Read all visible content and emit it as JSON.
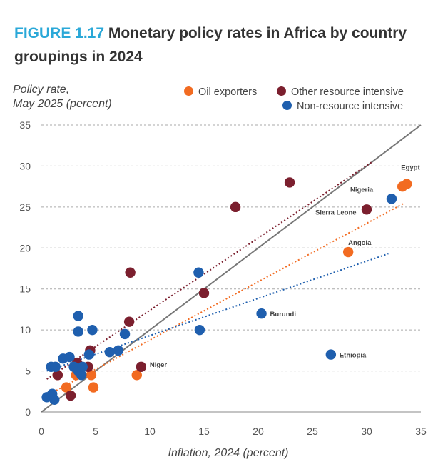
{
  "figure": {
    "number": "FIGURE 1.17",
    "title": "Monetary policy rates in Africa by country groupings in 2024"
  },
  "colors": {
    "oil": "#f26b21",
    "other_resource": "#7b1f2e",
    "non_resource": "#1f5fae",
    "diagonal": "#777777",
    "grid": "#aaaaaa"
  },
  "chart_data": {
    "type": "scatter",
    "title": "Monetary policy rates in Africa by country groupings in 2024",
    "xlabel": "Inflation, 2024 (percent)",
    "ylabel_line1": "Policy rate,",
    "ylabel_line2": "May 2025 (percent)",
    "xlim": [
      0,
      35
    ],
    "ylim": [
      0,
      35
    ],
    "xticks": [
      0,
      5,
      10,
      15,
      20,
      25,
      30,
      35
    ],
    "yticks": [
      0,
      5,
      10,
      15,
      20,
      25,
      30,
      35
    ],
    "grid": "horizontal dashed",
    "legend_position": "top-right",
    "series": [
      {
        "key": "oil",
        "name": "Oil exporters",
        "color": "#f26b21",
        "trendline": [
          [
            0.5,
            2.0
          ],
          [
            33.5,
            25.5
          ]
        ],
        "points": [
          {
            "x": 1.5,
            "y": 4.5
          },
          {
            "x": 2.3,
            "y": 3.0
          },
          {
            "x": 3.2,
            "y": 4.5
          },
          {
            "x": 4.6,
            "y": 4.5
          },
          {
            "x": 4.8,
            "y": 3.0
          },
          {
            "x": 8.8,
            "y": 4.5
          },
          {
            "x": 28.3,
            "y": 19.5,
            "label": "Angola"
          },
          {
            "x": 33.3,
            "y": 27.5
          },
          {
            "x": 33.7,
            "y": 27.8,
            "label": "Egypt"
          }
        ]
      },
      {
        "key": "other_resource",
        "name": "Other resource intensive",
        "color": "#7b1f2e",
        "trendline": [
          [
            0.5,
            4.0
          ],
          [
            30.5,
            30.5
          ]
        ],
        "points": [
          {
            "x": 1.5,
            "y": 4.5
          },
          {
            "x": 2.7,
            "y": 2.0
          },
          {
            "x": 3.3,
            "y": 6.0
          },
          {
            "x": 4.3,
            "y": 5.5
          },
          {
            "x": 4.5,
            "y": 7.5
          },
          {
            "x": 8.1,
            "y": 11.0
          },
          {
            "x": 8.2,
            "y": 17.0
          },
          {
            "x": 9.2,
            "y": 5.5,
            "label": "Niger"
          },
          {
            "x": 15.0,
            "y": 14.5
          },
          {
            "x": 17.9,
            "y": 25.0
          },
          {
            "x": 22.9,
            "y": 28.0
          },
          {
            "x": 30.0,
            "y": 24.7,
            "label": "Sierra Leone"
          }
        ]
      },
      {
        "key": "non_resource",
        "name": "Non-resource intensive",
        "color": "#1f5fae",
        "trendline": [
          [
            0.5,
            5.0
          ],
          [
            32.0,
            19.3
          ]
        ],
        "points": [
          {
            "x": 0.5,
            "y": 1.8
          },
          {
            "x": 1.0,
            "y": 2.2
          },
          {
            "x": 1.2,
            "y": 1.5
          },
          {
            "x": 0.9,
            "y": 5.5
          },
          {
            "x": 1.3,
            "y": 5.5
          },
          {
            "x": 2.0,
            "y": 6.5
          },
          {
            "x": 2.6,
            "y": 6.7
          },
          {
            "x": 3.0,
            "y": 5.5
          },
          {
            "x": 3.4,
            "y": 5.0
          },
          {
            "x": 3.7,
            "y": 4.5
          },
          {
            "x": 3.8,
            "y": 5.5
          },
          {
            "x": 4.4,
            "y": 7.0
          },
          {
            "x": 3.4,
            "y": 9.8
          },
          {
            "x": 3.4,
            "y": 11.7
          },
          {
            "x": 4.7,
            "y": 10.0
          },
          {
            "x": 6.3,
            "y": 7.3
          },
          {
            "x": 7.1,
            "y": 7.5
          },
          {
            "x": 7.7,
            "y": 9.5
          },
          {
            "x": 14.5,
            "y": 17.0
          },
          {
            "x": 14.6,
            "y": 10.0
          },
          {
            "x": 20.3,
            "y": 12.0,
            "label": "Burundi"
          },
          {
            "x": 26.7,
            "y": 7.0,
            "label": "Ethiopia"
          },
          {
            "x": 32.3,
            "y": 26.0,
            "label": "Nigeria"
          }
        ]
      }
    ],
    "reference_line": {
      "name": "45-degree line",
      "from": [
        0,
        0
      ],
      "to": [
        35,
        35
      ]
    }
  }
}
